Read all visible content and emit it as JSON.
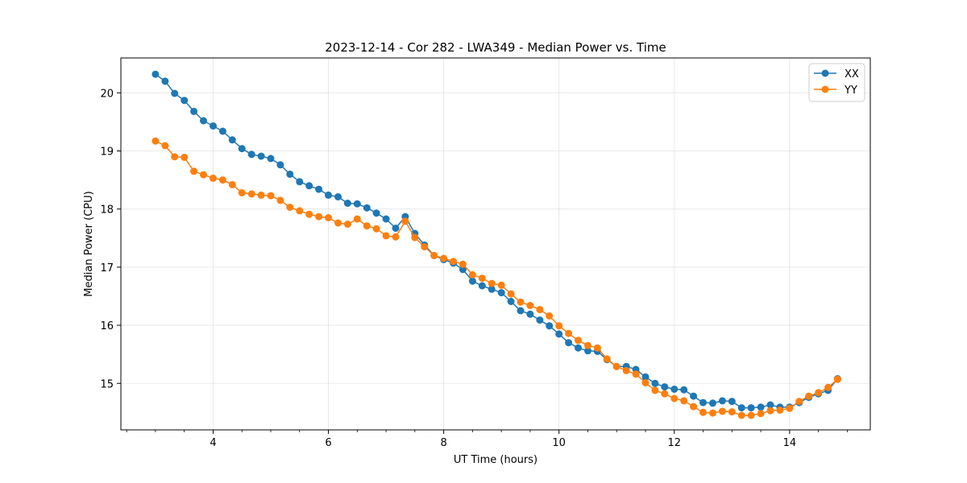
{
  "chart_data": {
    "type": "line",
    "title": "2023-12-14 - Cor 282 - LWA349 - Median Power vs. Time",
    "xlabel": "UT Time (hours)",
    "ylabel": "Median Power (CPU)",
    "xlim": [
      2.4,
      15.4
    ],
    "ylim": [
      14.2,
      20.6
    ],
    "xticks": [
      4,
      6,
      8,
      10,
      12,
      14
    ],
    "xtick_labels": [
      "4",
      "6",
      "8",
      "10",
      "12",
      "14"
    ],
    "xminor_step": 0.5,
    "yticks": [
      15,
      16,
      17,
      18,
      19,
      20
    ],
    "ytick_labels": [
      "15",
      "16",
      "17",
      "18",
      "19",
      "20"
    ],
    "grid": true,
    "legend_position": "top-right",
    "series": [
      {
        "name": "XX",
        "color": "#1f77b4",
        "x": [
          3.0,
          3.167,
          3.333,
          3.5,
          3.667,
          3.833,
          4.0,
          4.167,
          4.333,
          4.5,
          4.667,
          4.833,
          5.0,
          5.167,
          5.333,
          5.5,
          5.667,
          5.833,
          6.0,
          6.167,
          6.333,
          6.5,
          6.667,
          6.833,
          7.0,
          7.167,
          7.333,
          7.5,
          7.667,
          7.833,
          8.0,
          8.167,
          8.333,
          8.5,
          8.667,
          8.833,
          9.0,
          9.167,
          9.333,
          9.5,
          9.667,
          9.833,
          10.0,
          10.167,
          10.333,
          10.5,
          10.667,
          10.833,
          11.0,
          11.167,
          11.333,
          11.5,
          11.667,
          11.833,
          12.0,
          12.167,
          12.333,
          12.5,
          12.667,
          12.833,
          13.0,
          13.167,
          13.333,
          13.5,
          13.667,
          13.833,
          14.0,
          14.167,
          14.333,
          14.5,
          14.667,
          14.833
        ],
        "y": [
          20.32,
          20.2,
          19.99,
          19.87,
          19.68,
          19.52,
          19.43,
          19.34,
          19.19,
          19.04,
          18.94,
          18.91,
          18.87,
          18.76,
          18.6,
          18.47,
          18.4,
          18.34,
          18.24,
          18.21,
          18.1,
          18.09,
          18.02,
          17.93,
          17.83,
          17.67,
          17.87,
          17.58,
          17.38,
          17.2,
          17.13,
          17.07,
          16.96,
          16.76,
          16.68,
          16.62,
          16.56,
          16.41,
          16.25,
          16.19,
          16.09,
          15.99,
          15.85,
          15.7,
          15.61,
          15.56,
          15.55,
          15.41,
          15.29,
          15.29,
          15.24,
          15.11,
          15.0,
          14.94,
          14.9,
          14.89,
          14.78,
          14.67,
          14.66,
          14.7,
          14.69,
          14.58,
          14.58,
          14.59,
          14.63,
          14.59,
          14.59,
          14.67,
          14.76,
          14.82,
          14.88,
          15.08
        ]
      },
      {
        "name": "YY",
        "color": "#ff7f0e",
        "x": [
          3.0,
          3.167,
          3.333,
          3.5,
          3.667,
          3.833,
          4.0,
          4.167,
          4.333,
          4.5,
          4.667,
          4.833,
          5.0,
          5.167,
          5.333,
          5.5,
          5.667,
          5.833,
          6.0,
          6.167,
          6.333,
          6.5,
          6.667,
          6.833,
          7.0,
          7.167,
          7.333,
          7.5,
          7.667,
          7.833,
          8.0,
          8.167,
          8.333,
          8.5,
          8.667,
          8.833,
          9.0,
          9.167,
          9.333,
          9.5,
          9.667,
          9.833,
          10.0,
          10.167,
          10.333,
          10.5,
          10.667,
          10.833,
          11.0,
          11.167,
          11.333,
          11.5,
          11.667,
          11.833,
          12.0,
          12.167,
          12.333,
          12.5,
          12.667,
          12.833,
          13.0,
          13.167,
          13.333,
          13.5,
          13.667,
          13.833,
          14.0,
          14.167,
          14.333,
          14.5,
          14.667,
          14.833
        ],
        "y": [
          19.17,
          19.09,
          18.9,
          18.89,
          18.65,
          18.59,
          18.53,
          18.5,
          18.42,
          18.28,
          18.26,
          18.24,
          18.23,
          18.15,
          18.03,
          17.97,
          17.91,
          17.87,
          17.85,
          17.76,
          17.74,
          17.83,
          17.71,
          17.66,
          17.54,
          17.52,
          17.79,
          17.51,
          17.35,
          17.2,
          17.15,
          17.1,
          17.05,
          16.87,
          16.81,
          16.72,
          16.69,
          16.54,
          16.4,
          16.34,
          16.27,
          16.16,
          15.99,
          15.86,
          15.74,
          15.65,
          15.61,
          15.42,
          15.29,
          15.22,
          15.16,
          15.01,
          14.88,
          14.82,
          14.74,
          14.7,
          14.6,
          14.5,
          14.49,
          14.52,
          14.51,
          14.45,
          14.45,
          14.48,
          14.53,
          14.54,
          14.57,
          14.69,
          14.78,
          14.84,
          14.93,
          15.07
        ]
      }
    ]
  }
}
